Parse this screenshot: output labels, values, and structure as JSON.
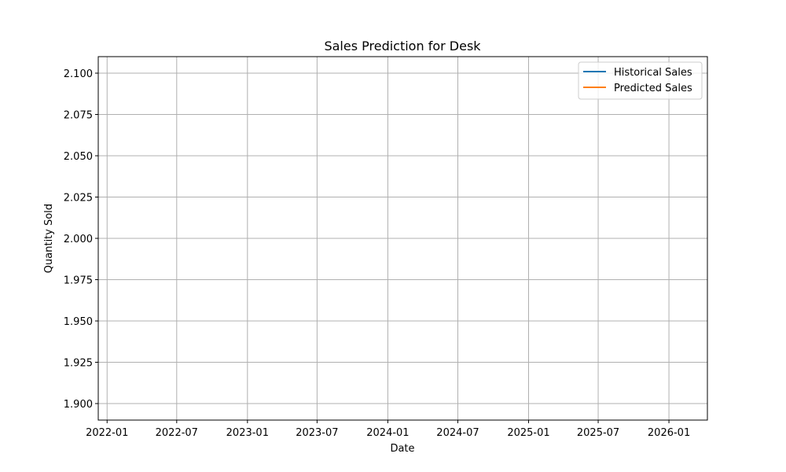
{
  "chart_data": {
    "type": "line",
    "title": "Sales Prediction for Desk",
    "xlabel": "Date",
    "ylabel": "Quantity Sold",
    "x_ticks": [
      "2022-01",
      "2022-07",
      "2023-01",
      "2023-07",
      "2024-01",
      "2024-07",
      "2025-01",
      "2025-07",
      "2026-01"
    ],
    "y_ticks": [
      "1.900",
      "1.925",
      "1.950",
      "1.975",
      "2.000",
      "2.025",
      "2.050",
      "2.075",
      "2.100"
    ],
    "ylim": [
      1.89,
      2.11
    ],
    "xlim": [
      "2021-12-09",
      "2026-04-11"
    ],
    "grid": true,
    "legend_position": "top-right",
    "series": [
      {
        "name": "Historical Sales",
        "color": "#1f77b4",
        "points": []
      },
      {
        "name": "Predicted Sales",
        "color": "#ff7f0e",
        "points": []
      }
    ]
  }
}
